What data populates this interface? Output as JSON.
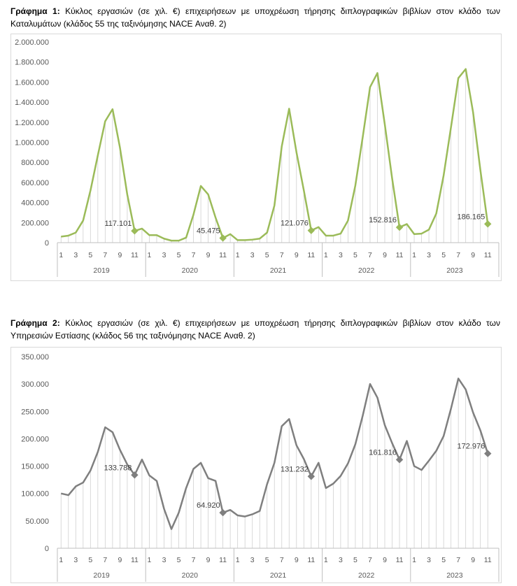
{
  "charts": [
    {
      "caption_label": "Γράφημα 1:",
      "caption_text": " Κύκλος εργασιών (σε χιλ. €) επιχειρήσεων με υποχρέωση τήρησης διπλογραφικών βιβλίων στον κλάδο των Καταλυμάτων (κλάδος 55 της ταξινόμησης NACE Αναθ. 2)"
    },
    {
      "caption_label": "Γράφημα 2:",
      "caption_text": " Κύκλος εργασιών (σε χιλ. €) επιχειρήσεων με υποχρέωση τήρησης διπλογραφικών βιβλίων στον κλάδο των Υπηρεσιών Εστίασης (κλάδος 56 της ταξινόμησης NACE Αναθ. 2)"
    }
  ],
  "chart_data": [
    {
      "type": "line",
      "color": "#9bbb59",
      "ylim": [
        0,
        2000000
      ],
      "yticks": [
        "0",
        "200.000",
        "400.000",
        "600.000",
        "800.000",
        "1.000.000",
        "1.200.000",
        "1.400.000",
        "1.600.000",
        "1.800.000",
        "2.000.000"
      ],
      "grid": "vertical",
      "years": [
        "2019",
        "2020",
        "2021",
        "2022",
        "2023"
      ],
      "month_ticks": [
        "1",
        "3",
        "5",
        "7",
        "9",
        "11"
      ],
      "values": [
        60000,
        70000,
        100000,
        220000,
        520000,
        870000,
        1210000,
        1330000,
        950000,
        480000,
        117101,
        140000,
        75000,
        75000,
        40000,
        20000,
        20000,
        50000,
        280000,
        565000,
        480000,
        250000,
        45475,
        85000,
        25000,
        25000,
        30000,
        40000,
        100000,
        370000,
        960000,
        1335000,
        900000,
        520000,
        121076,
        155000,
        70000,
        70000,
        90000,
        220000,
        570000,
        1050000,
        1550000,
        1690000,
        1180000,
        640000,
        152816,
        185000,
        85000,
        90000,
        130000,
        290000,
        670000,
        1150000,
        1640000,
        1730000,
        1300000,
        720000,
        186165
      ],
      "markers": [
        {
          "index": 10,
          "label": "117.101"
        },
        {
          "index": 22,
          "label": "45.475"
        },
        {
          "index": 34,
          "label": "121.076"
        },
        {
          "index": 46,
          "label": "152.816"
        },
        {
          "index": 58,
          "label": "186.165"
        }
      ]
    },
    {
      "type": "line",
      "color": "#7f7f7f",
      "ylim": [
        0,
        350000
      ],
      "yticks": [
        "0",
        "50.000",
        "100.000",
        "150.000",
        "200.000",
        "250.000",
        "300.000",
        "350.000"
      ],
      "grid": "vertical",
      "years": [
        "2019",
        "2020",
        "2021",
        "2022",
        "2023"
      ],
      "month_ticks": [
        "1",
        "3",
        "5",
        "7",
        "9",
        "11"
      ],
      "values": [
        100000,
        97000,
        113000,
        120000,
        142000,
        176000,
        221000,
        212000,
        180000,
        153000,
        133788,
        162000,
        133000,
        123000,
        72000,
        35000,
        65000,
        110000,
        145000,
        156000,
        128000,
        123000,
        64920,
        70000,
        60000,
        58000,
        62000,
        68000,
        117000,
        156000,
        223000,
        236000,
        188000,
        163000,
        131232,
        156000,
        110000,
        118000,
        132000,
        155000,
        190000,
        242000,
        300000,
        275000,
        225000,
        192000,
        161816,
        196000,
        150000,
        143000,
        160000,
        178000,
        205000,
        255000,
        310000,
        290000,
        248000,
        215000,
        172976
      ],
      "markers": [
        {
          "index": 10,
          "label": "133.788"
        },
        {
          "index": 22,
          "label": "64.920"
        },
        {
          "index": 34,
          "label": "131.232"
        },
        {
          "index": 46,
          "label": "161.816"
        },
        {
          "index": 58,
          "label": "172.976"
        }
      ]
    }
  ]
}
